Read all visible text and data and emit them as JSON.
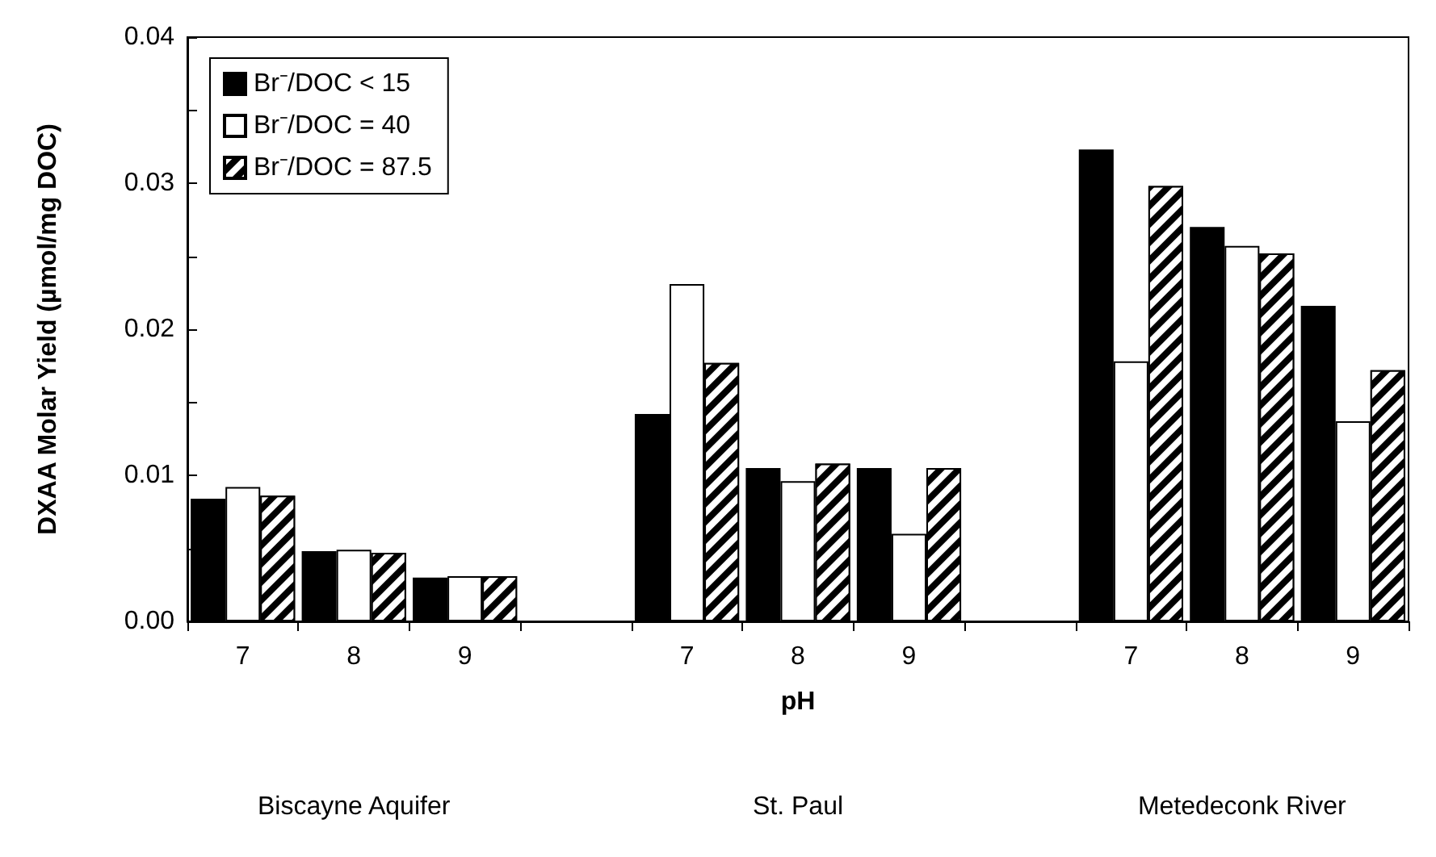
{
  "chart_data": {
    "type": "bar",
    "xlabel": "pH",
    "ylabel": "DXAA Molar Yield (µmol/mg DOC)",
    "categories": [
      "7",
      "8",
      "9",
      null,
      "7",
      "8",
      "9",
      null,
      "7",
      "8",
      "9"
    ],
    "series": [
      {
        "name": "Br⁻/DOC < 15",
        "color": "#000000",
        "values": [
          0.0084,
          0.0048,
          0.003,
          null,
          0.0142,
          0.0105,
          0.0105,
          null,
          0.0323,
          0.027,
          0.0216
        ]
      },
      {
        "name": "Br⁻/DOC = 40",
        "color": "#ffffff",
        "values": [
          0.0092,
          0.0049,
          0.0031,
          null,
          0.0231,
          0.0096,
          0.006,
          null,
          0.0178,
          0.0257,
          0.0137
        ]
      },
      {
        "name": "Br⁻/DOC = 87.5",
        "color": "#000000",
        "values": [
          0.0086,
          0.0047,
          0.0031,
          null,
          0.0177,
          0.0108,
          0.0105,
          null,
          0.0298,
          0.0252,
          0.0172
        ]
      }
    ],
    "ylim": [
      0,
      0.04
    ],
    "yticks": [
      {
        "value": 0,
        "label": "0.00"
      },
      {
        "value": 0.005,
        "label": null
      },
      {
        "value": 0.01,
        "label": "0.01"
      },
      {
        "value": 0.015,
        "label": null
      },
      {
        "value": 0.02,
        "label": "0.02"
      },
      {
        "value": 0.025,
        "label": null
      },
      {
        "value": 0.03,
        "label": "0.03"
      },
      {
        "value": 0.035,
        "label": null
      },
      {
        "value": 0.04,
        "label": "0.04"
      }
    ],
    "annotations": [
      "Biscayne Aquifer",
      "St. Paul",
      "Metedeconk River"
    ],
    "legend": "top left",
    "grid": false
  }
}
